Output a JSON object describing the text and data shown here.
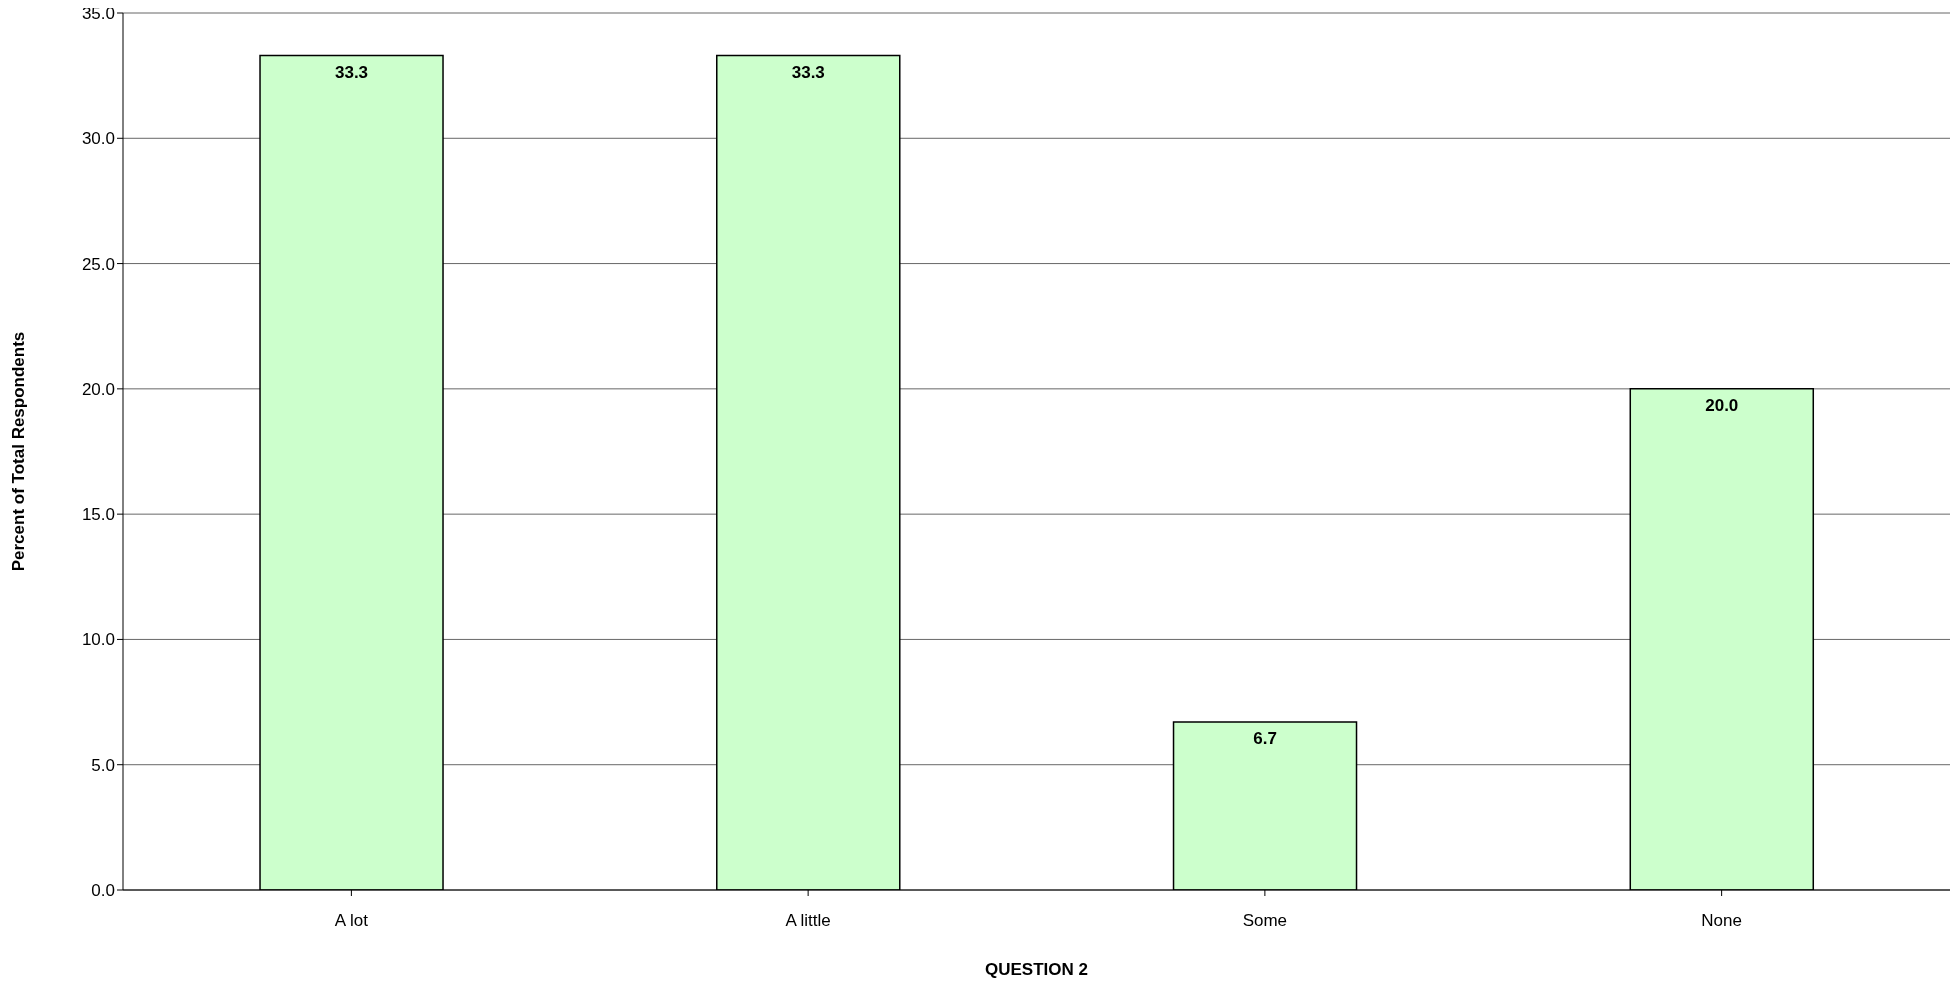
{
  "chart_data": {
    "type": "bar",
    "xlabel": "QUESTION 2",
    "ylabel": "Percent of Total Respondents",
    "categories": [
      "A lot",
      "A little",
      "Some",
      "None"
    ],
    "values": [
      33.3,
      33.3,
      6.7,
      20.0
    ],
    "color": "#ccffcc",
    "ylim": [
      0,
      35
    ],
    "yticks": [
      {
        "value": 0,
        "label": "0.0"
      },
      {
        "value": 5,
        "label": "5.0"
      },
      {
        "value": 10,
        "label": "10.0"
      },
      {
        "value": 15,
        "label": "15.0"
      },
      {
        "value": 20,
        "label": "20.0"
      },
      {
        "value": 25,
        "label": "25.0"
      },
      {
        "value": 30,
        "label": "30.0"
      },
      {
        "value": 35,
        "label": "35.0"
      }
    ],
    "value_labels": [
      "33.3",
      "33.3",
      "6.7",
      "20.0"
    ],
    "grid": "y",
    "legend": false
  }
}
